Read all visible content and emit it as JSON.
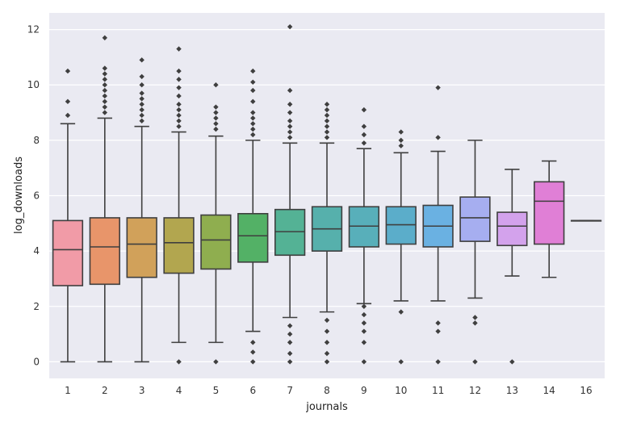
{
  "chart_data": {
    "type": "box",
    "xlabel": "journals",
    "ylabel": "log_downloads",
    "ylim": [
      -0.6,
      12.6
    ],
    "yticks": [
      0,
      2,
      4,
      6,
      8,
      10,
      12
    ],
    "grid": true,
    "categories": [
      "1",
      "2",
      "3",
      "4",
      "5",
      "6",
      "7",
      "8",
      "9",
      "10",
      "11",
      "12",
      "13",
      "14",
      "16"
    ],
    "boxes": [
      {
        "category": "1",
        "color": "#f19ba7",
        "q1": 2.75,
        "median": 4.05,
        "q3": 5.1,
        "whisker_low": 0.0,
        "whisker_high": 8.6,
        "outliers": [
          8.9,
          9.4,
          10.5
        ]
      },
      {
        "category": "2",
        "color": "#e8956a",
        "q1": 2.8,
        "median": 4.15,
        "q3": 5.2,
        "whisker_low": 0.0,
        "whisker_high": 8.8,
        "outliers": [
          9.0,
          9.2,
          9.4,
          9.6,
          9.8,
          10.0,
          10.2,
          10.4,
          10.6,
          11.7
        ]
      },
      {
        "category": "3",
        "color": "#d1a15a",
        "q1": 3.05,
        "median": 4.25,
        "q3": 5.2,
        "whisker_low": 0.0,
        "whisker_high": 8.5,
        "outliers": [
          8.7,
          8.9,
          9.1,
          9.3,
          9.5,
          9.7,
          10.0,
          10.3,
          10.9
        ]
      },
      {
        "category": "4",
        "color": "#b2a64f",
        "q1": 3.2,
        "median": 4.3,
        "q3": 5.2,
        "whisker_low": 0.7,
        "whisker_high": 8.3,
        "outliers": [
          0.0,
          8.5,
          8.7,
          8.9,
          9.1,
          9.3,
          9.6,
          9.9,
          10.2,
          10.5,
          11.3
        ]
      },
      {
        "category": "5",
        "color": "#8fae4f",
        "q1": 3.35,
        "median": 4.4,
        "q3": 5.3,
        "whisker_low": 0.7,
        "whisker_high": 8.15,
        "outliers": [
          0.0,
          8.4,
          8.6,
          8.8,
          9.0,
          9.2,
          10.0
        ]
      },
      {
        "category": "6",
        "color": "#53b166",
        "q1": 3.6,
        "median": 4.55,
        "q3": 5.35,
        "whisker_low": 1.1,
        "whisker_high": 8.0,
        "outliers": [
          0.0,
          0.35,
          0.7,
          8.2,
          8.4,
          8.6,
          8.8,
          9.0,
          9.4,
          9.8,
          10.1,
          10.5
        ]
      },
      {
        "category": "7",
        "color": "#54b295",
        "q1": 3.85,
        "median": 4.7,
        "q3": 5.5,
        "whisker_low": 1.6,
        "whisker_high": 7.9,
        "outliers": [
          0.0,
          0.3,
          0.7,
          1.0,
          1.3,
          8.1,
          8.3,
          8.5,
          8.7,
          9.0,
          9.3,
          9.8,
          12.1
        ]
      },
      {
        "category": "8",
        "color": "#56b0ac",
        "q1": 4.0,
        "median": 4.8,
        "q3": 5.6,
        "whisker_low": 1.8,
        "whisker_high": 7.9,
        "outliers": [
          0.0,
          0.3,
          0.7,
          1.1,
          1.5,
          8.1,
          8.3,
          8.5,
          8.7,
          8.9,
          9.1,
          9.3
        ]
      },
      {
        "category": "9",
        "color": "#58afba",
        "q1": 4.15,
        "median": 4.9,
        "q3": 5.6,
        "whisker_low": 2.1,
        "whisker_high": 7.7,
        "outliers": [
          0.0,
          0.7,
          1.1,
          1.4,
          1.7,
          2.0,
          7.9,
          8.2,
          8.5,
          9.1
        ]
      },
      {
        "category": "10",
        "color": "#5badca",
        "q1": 4.25,
        "median": 4.95,
        "q3": 5.6,
        "whisker_low": 2.2,
        "whisker_high": 7.55,
        "outliers": [
          0.0,
          1.8,
          7.8,
          8.0,
          8.3
        ]
      },
      {
        "category": "11",
        "color": "#6ab1e2",
        "q1": 4.15,
        "median": 4.9,
        "q3": 5.65,
        "whisker_low": 2.2,
        "whisker_high": 7.6,
        "outliers": [
          0.0,
          1.1,
          1.4,
          8.1,
          9.9
        ]
      },
      {
        "category": "12",
        "color": "#a6aef0",
        "q1": 4.35,
        "median": 5.2,
        "q3": 5.95,
        "whisker_low": 2.3,
        "whisker_high": 8.0,
        "outliers": [
          0.0,
          1.4,
          1.6
        ]
      },
      {
        "category": "13",
        "color": "#d3a2ec",
        "q1": 4.2,
        "median": 4.9,
        "q3": 5.4,
        "whisker_low": 3.1,
        "whisker_high": 6.95,
        "outliers": [
          0.0
        ]
      },
      {
        "category": "14",
        "color": "#e07fd6",
        "q1": 4.25,
        "median": 5.8,
        "q3": 6.5,
        "whisker_low": 3.05,
        "whisker_high": 7.25,
        "outliers": []
      },
      {
        "category": "16",
        "color": "#f192be",
        "q1": 5.1,
        "median": 5.1,
        "q3": 5.1,
        "whisker_low": 5.1,
        "whisker_high": 5.1,
        "outliers": []
      }
    ]
  }
}
